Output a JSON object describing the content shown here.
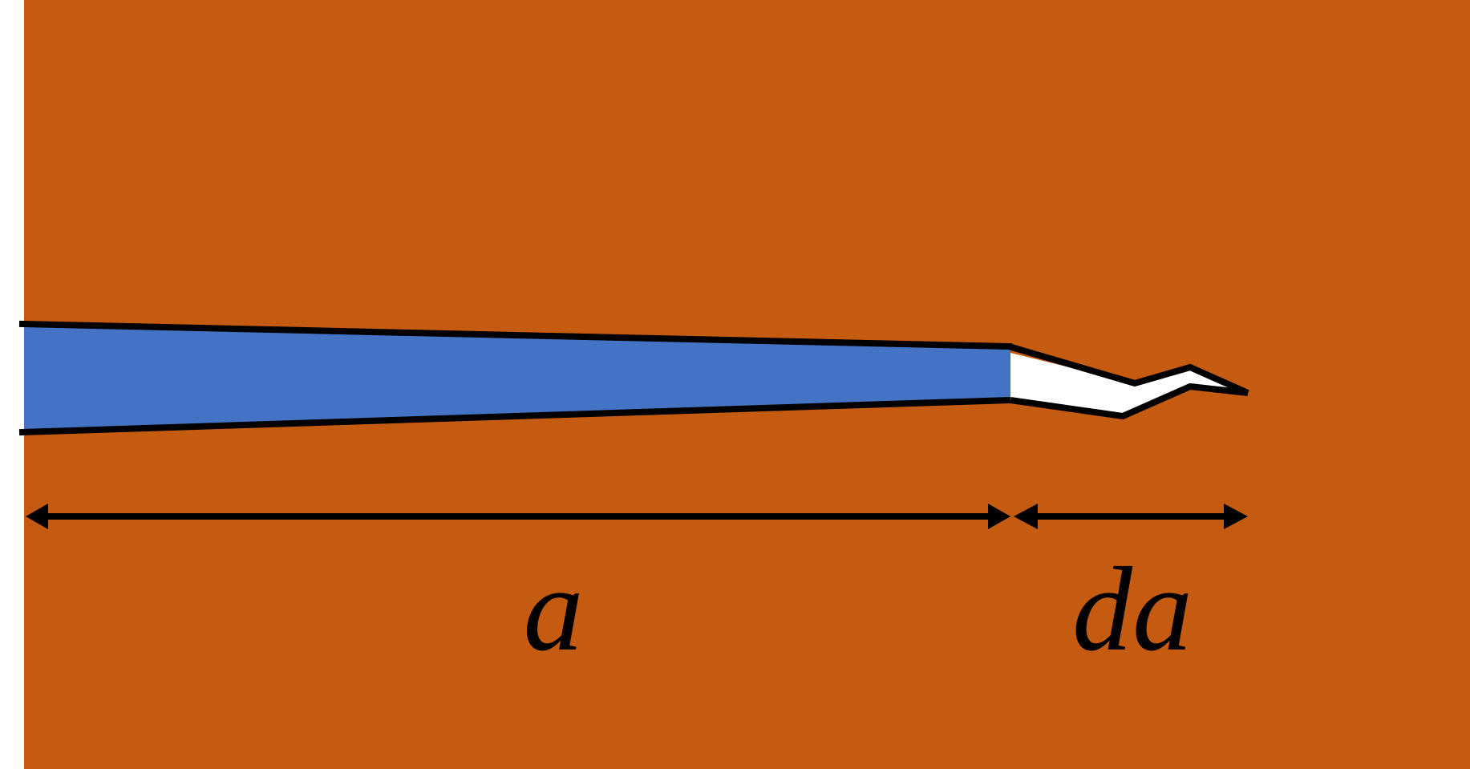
{
  "diagram": {
    "labels": {
      "crack_length": "a",
      "crack_increment": "da"
    },
    "colors": {
      "background": "#C55A11",
      "page_margin": "#FFFFFF",
      "crack_fill": "#4472C4",
      "increment_fill": "#FFFFFF",
      "outline": "#000000"
    }
  }
}
